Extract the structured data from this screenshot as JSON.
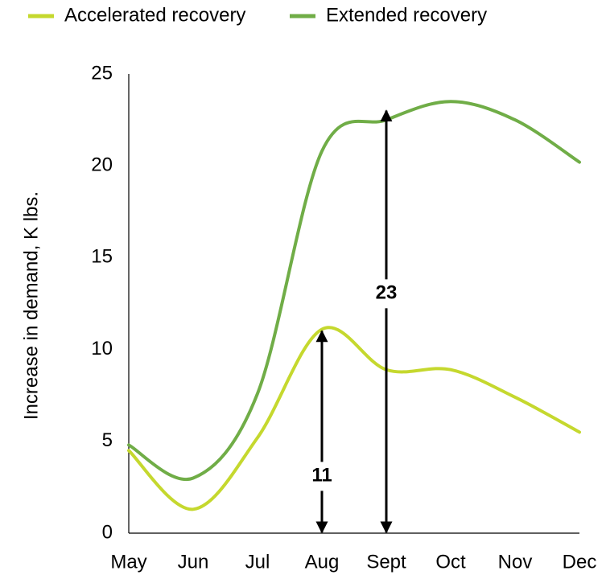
{
  "chart_data": {
    "type": "line",
    "y_label": "Increase in demand, K lbs.",
    "categories": [
      "May",
      "Jun",
      "Jul",
      "Aug",
      "Sept",
      "Oct",
      "Nov",
      "Dec"
    ],
    "series": [
      {
        "name": "Accelerated recovery",
        "color": "#c5d82e",
        "values": [
          4.5,
          1.3,
          5.2,
          11.1,
          8.9,
          8.9,
          7.4,
          5.5
        ]
      },
      {
        "name": "Extended recovery",
        "color": "#70ad47",
        "values": [
          4.8,
          3.0,
          7.6,
          20.8,
          22.5,
          23.5,
          22.5,
          20.2
        ]
      }
    ],
    "annotations": [
      {
        "text": "11",
        "at": "Aug",
        "value": 11
      },
      {
        "text": "23",
        "at": "Sept",
        "value": 23
      }
    ],
    "ylim": [
      0,
      25
    ],
    "yticks": [
      0,
      5,
      10,
      15,
      20,
      25
    ],
    "grid": false,
    "legend": "top"
  }
}
